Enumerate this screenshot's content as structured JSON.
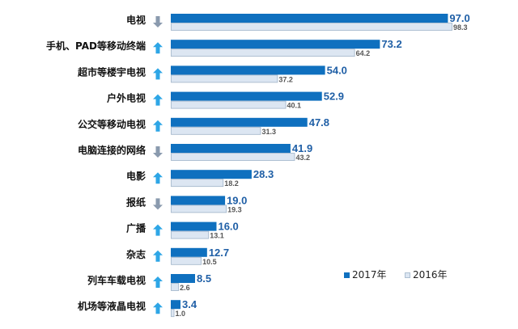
{
  "colors": {
    "series_2017": "#0f70bf",
    "series_2016": "#dce6f2",
    "series_2016_border": "#9fb3c8",
    "arrow_up": "#2ea6e6",
    "arrow_down": "#8a9aae",
    "value_2017_text": "#1f5fa6"
  },
  "chart_data": {
    "type": "bar",
    "orientation": "horizontal",
    "categories": [
      "电视",
      "手机、PAD等移动终端",
      "超市等楼宇电视",
      "户外电视",
      "公交等移动电视",
      "电脑连接的网络",
      "电影",
      "报纸",
      "广播",
      "杂志",
      "列车车载电视",
      "机场等液晶电视"
    ],
    "trend_icons": [
      "arrow-down",
      "arrow-up",
      "arrow-up",
      "arrow-up",
      "arrow-up",
      "arrow-down",
      "arrow-up",
      "arrow-down",
      "arrow-up",
      "arrow-up",
      "arrow-up",
      "arrow-up"
    ],
    "series": [
      {
        "name": "2017年",
        "values": [
          97.0,
          73.2,
          54.0,
          52.9,
          47.8,
          41.9,
          28.3,
          19.0,
          16.0,
          12.7,
          8.5,
          3.4
        ]
      },
      {
        "name": "2016年",
        "values": [
          98.3,
          64.2,
          37.2,
          40.1,
          31.3,
          43.2,
          18.2,
          19.3,
          13.1,
          10.5,
          2.6,
          1.0
        ]
      }
    ],
    "xlim": [
      0,
      100
    ],
    "grid": false,
    "legend": {
      "position": "bottom-right",
      "labels": [
        "2017年",
        "2016年"
      ]
    }
  }
}
